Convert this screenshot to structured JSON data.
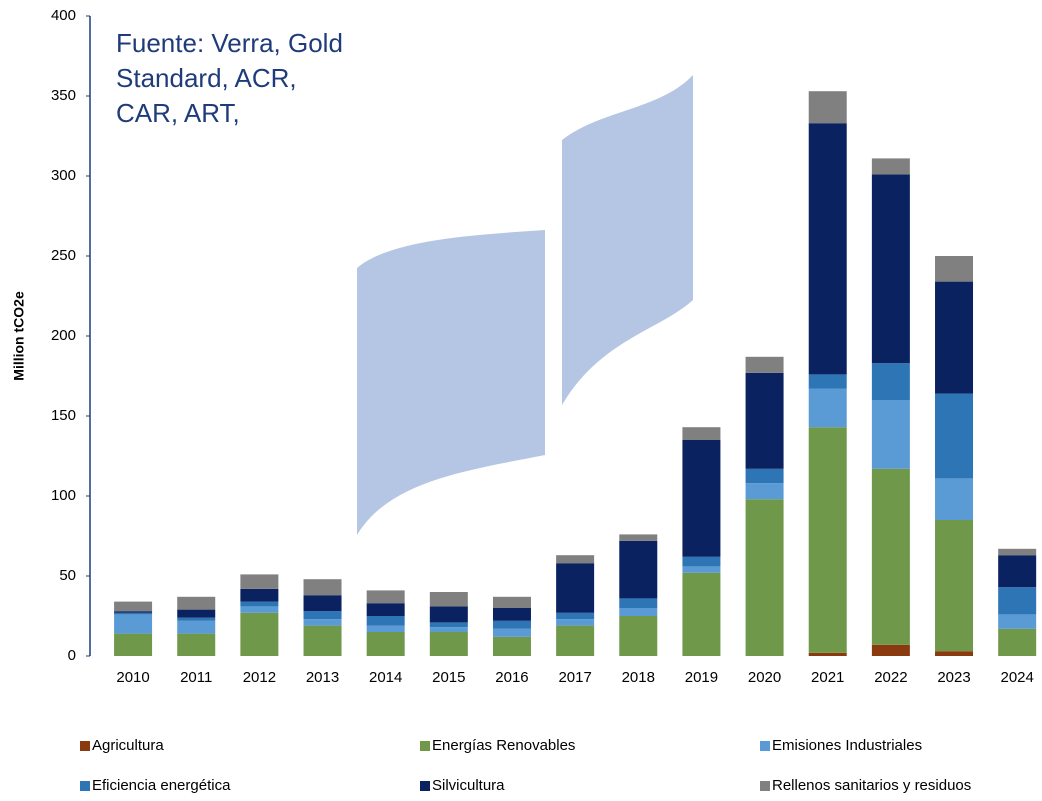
{
  "chart_data": {
    "type": "stacked_bar",
    "annotation": [
      "Fuente: Verra, Gold",
      "Standard, ACR,",
      "CAR, ART,"
    ],
    "y_label": "Million tCO2e",
    "categories": [
      "2010",
      "2011",
      "2012",
      "2013",
      "2014",
      "2015",
      "2016",
      "2017",
      "2018",
      "2019",
      "2020",
      "2021",
      "2022",
      "2023",
      "2024"
    ],
    "series": [
      {
        "name": "Agricultura",
        "color": "#8b3a0f",
        "values": [
          0,
          0,
          0,
          0,
          0,
          0,
          0,
          0,
          0,
          0,
          0,
          2,
          7,
          3,
          0
        ]
      },
      {
        "name": "Energías Renovables",
        "color": "#70984a",
        "values": [
          14,
          14,
          27,
          19,
          15,
          15,
          12,
          19,
          25,
          52,
          98,
          141,
          110,
          82,
          17
        ]
      },
      {
        "name": "Emisiones Industriales",
        "color": "#5b9bd5",
        "values": [
          12,
          8,
          4,
          4,
          4,
          3,
          5,
          4,
          5,
          4,
          10,
          24,
          43,
          26,
          9
        ]
      },
      {
        "name": "Eficiencia energética",
        "color": "#2e75b6",
        "values": [
          1,
          2,
          3,
          5,
          6,
          3,
          5,
          4,
          6,
          6,
          9,
          9,
          23,
          53,
          17
        ]
      },
      {
        "name": "Silvicultura",
        "color": "#0b2260",
        "values": [
          1,
          5,
          8,
          10,
          8,
          10,
          8,
          31,
          36,
          73,
          60,
          157,
          118,
          70,
          20
        ]
      },
      {
        "name": "Rellenos sanitarios y residuos",
        "color": "#808080",
        "values": [
          6,
          8,
          9,
          10,
          8,
          9,
          7,
          5,
          4,
          8,
          10,
          20,
          10,
          16,
          4
        ]
      }
    ],
    "ylim": [
      0,
      400
    ],
    "yticks": [
      0,
      50,
      100,
      150,
      200,
      250,
      300,
      350,
      400
    ]
  }
}
